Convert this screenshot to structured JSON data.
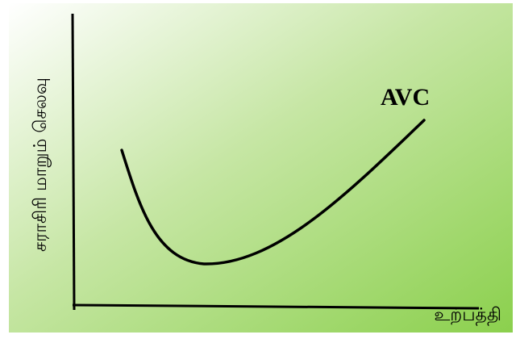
{
  "diagram": {
    "y_axis_label": "சராசிரி மாறும் செலவு",
    "x_axis_label": "உற்பத்தி",
    "curve_label": "AVC",
    "colors": {
      "gradient_start": "#ffffff",
      "gradient_end": "#8bd04d",
      "axis": "#000000",
      "curve": "#000000"
    }
  }
}
